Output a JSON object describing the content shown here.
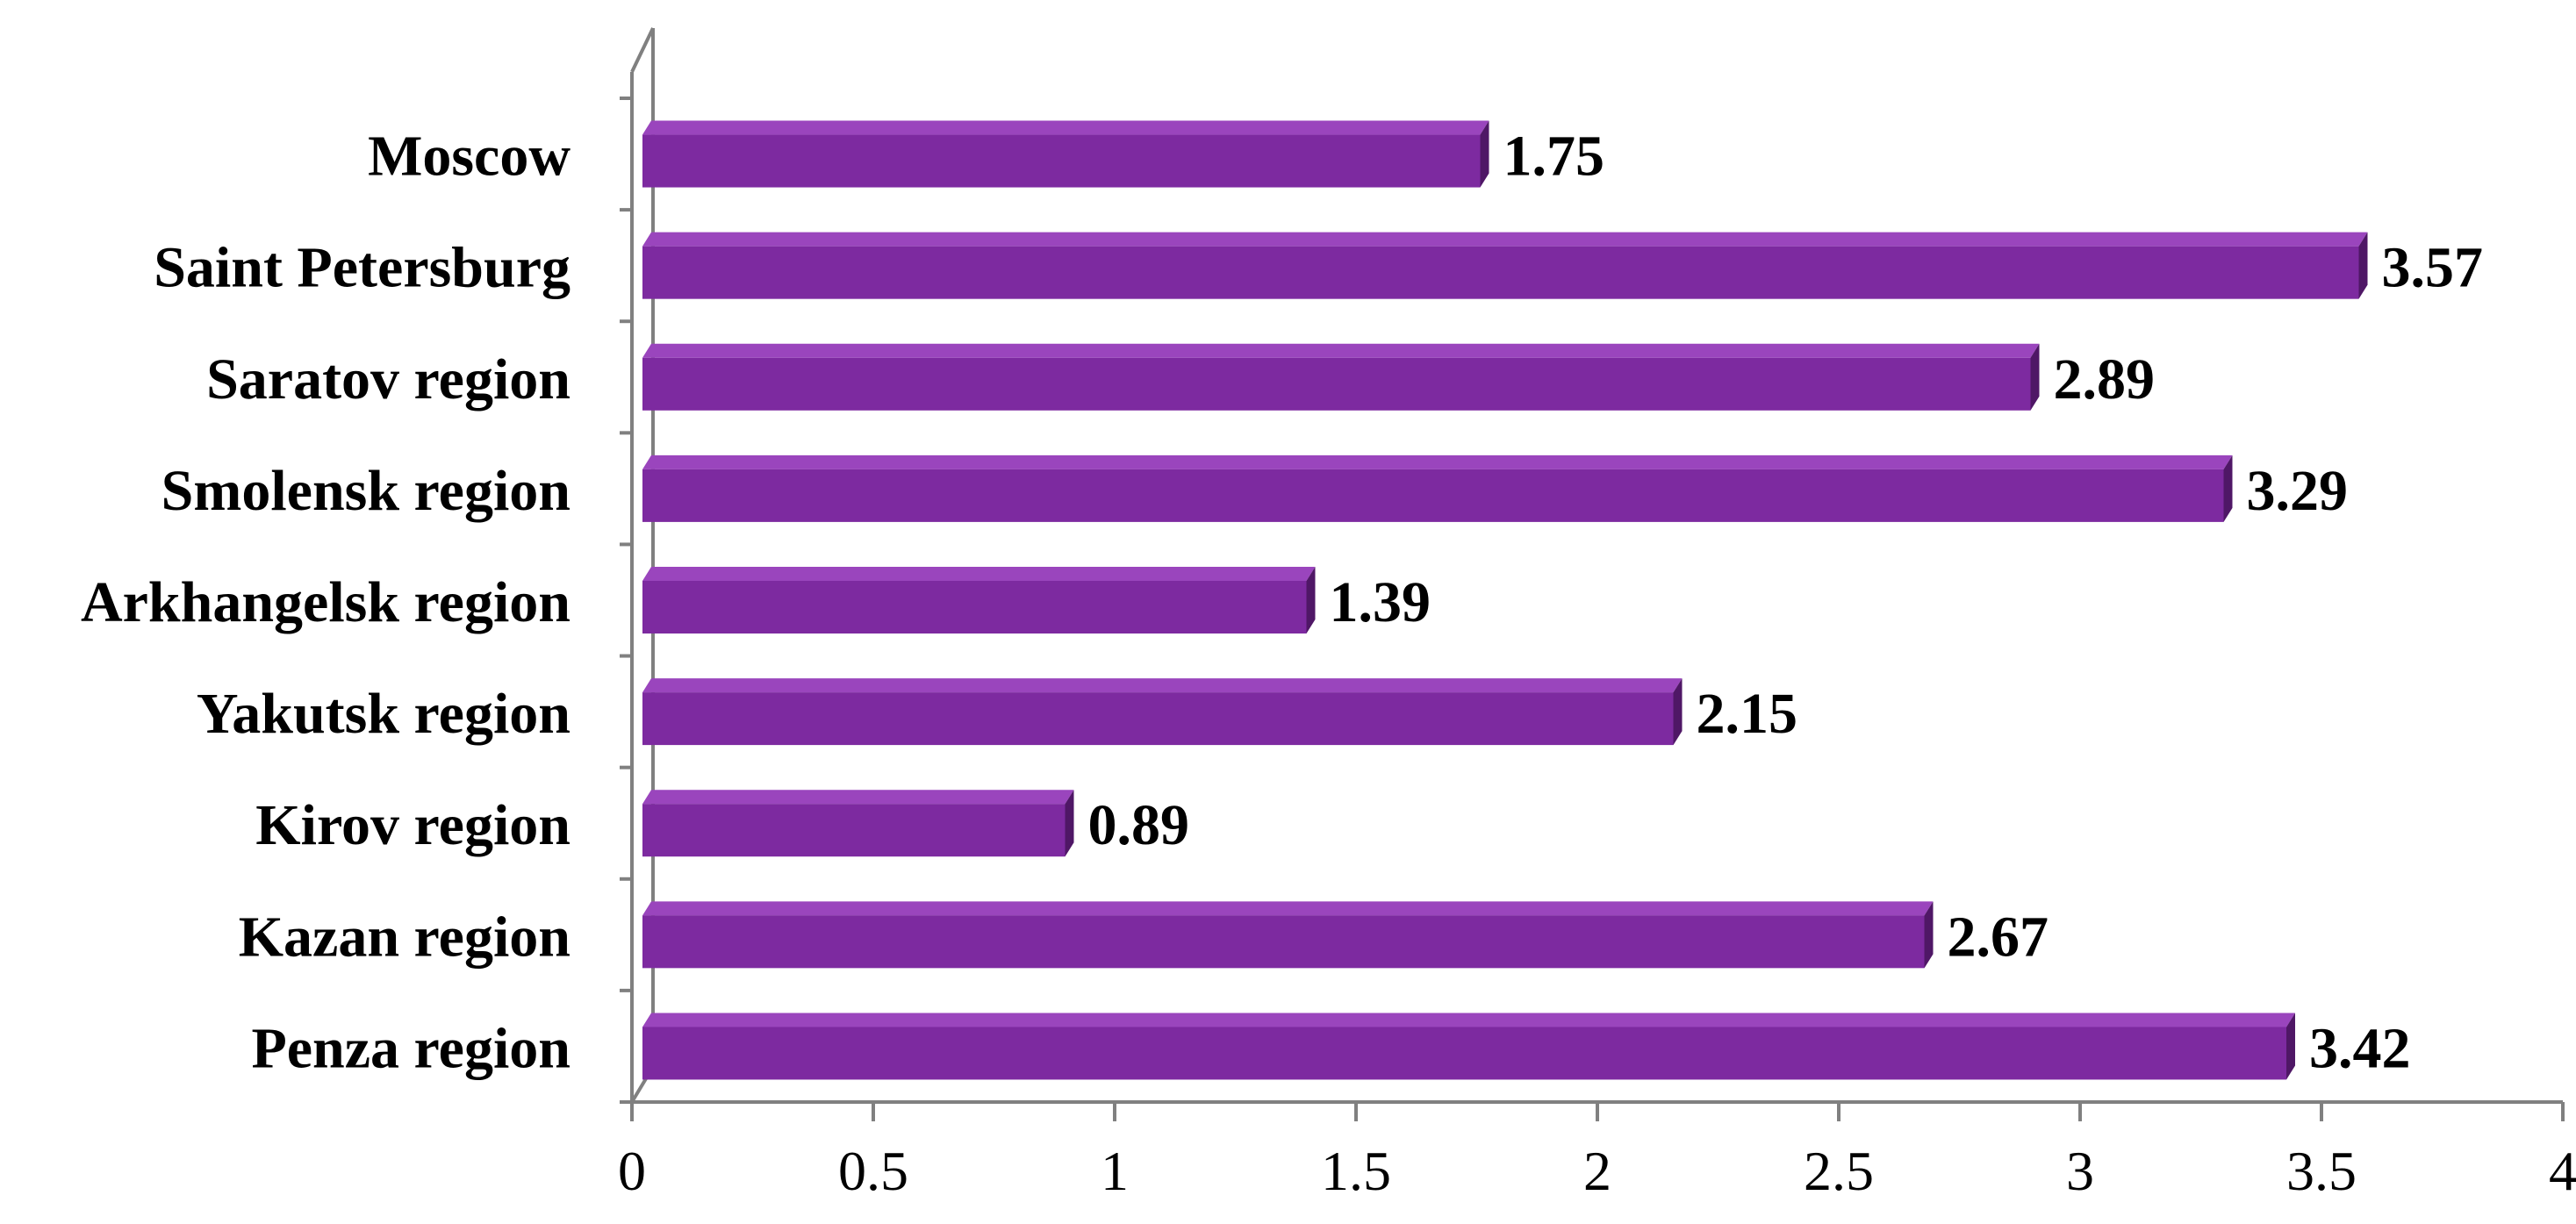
{
  "chart_data": {
    "type": "bar",
    "orientation": "horizontal",
    "style": "3d",
    "categories": [
      "Moscow",
      "Saint Petersburg",
      "Saratov region",
      "Smolensk region",
      "Arkhangelsk region",
      "Yakutsk region",
      "Kirov region",
      "Kazan region",
      "Penza region"
    ],
    "values": [
      1.75,
      3.57,
      2.89,
      3.29,
      1.39,
      2.15,
      0.89,
      2.67,
      3.42
    ],
    "value_labels": [
      "1.75",
      "3.57",
      "2.89",
      "3.29",
      "1.39",
      "2.15",
      "0.89",
      "2.67",
      "3.42"
    ],
    "xlim": [
      0,
      4
    ],
    "x_ticks": [
      0,
      0.5,
      1,
      1.5,
      2,
      2.5,
      3,
      3.5,
      4
    ],
    "x_tick_labels": [
      "0",
      "0.5",
      "1",
      "1.5",
      "2",
      "2.5",
      "3",
      "3.5",
      "4"
    ],
    "title": "",
    "xlabel": "",
    "ylabel": "",
    "grid": false,
    "legend": "none",
    "colors": {
      "bar_front": "#7d2aa0",
      "bar_top": "#9a45bd",
      "bar_side": "#4f1766",
      "axis": "#808080"
    }
  }
}
